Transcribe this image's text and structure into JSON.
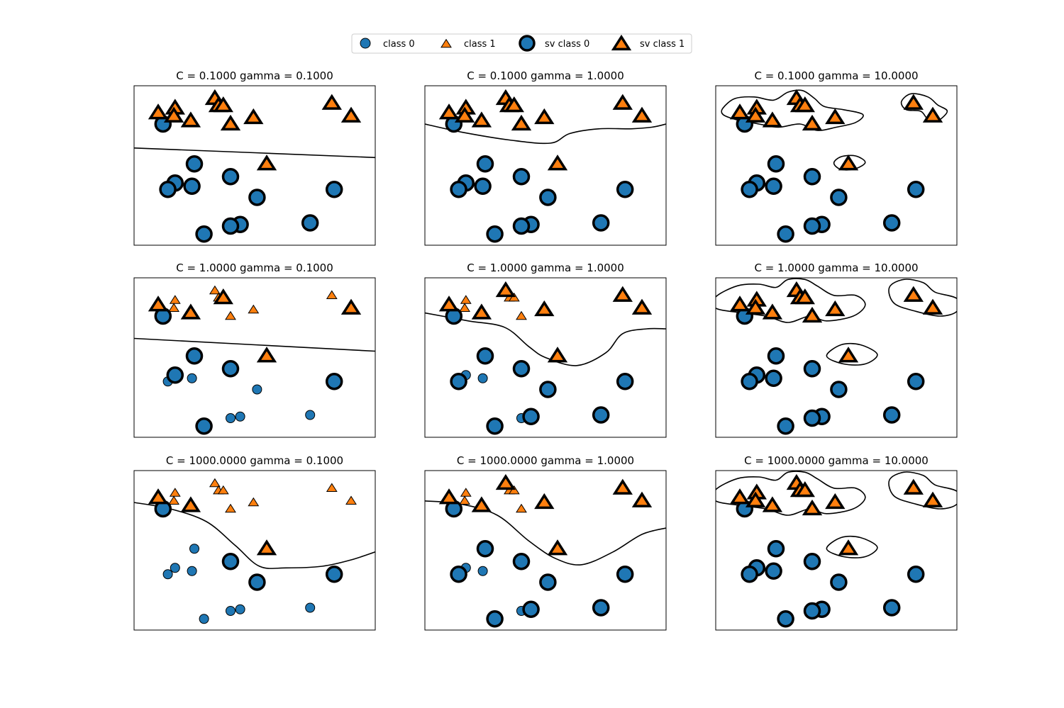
{
  "chart_data": {
    "type": "scatter",
    "figure_layout": "3x3 grid of subplots",
    "colors": {
      "class0": "#1f77b4",
      "class1": "#ff7f0e",
      "edge": "#000000",
      "boundary": "#000000"
    },
    "legend": {
      "placement": "top-center",
      "entries": [
        {
          "label": "class 0",
          "marker": "circle",
          "size": "small"
        },
        {
          "label": "class 1",
          "marker": "triangle",
          "size": "small"
        },
        {
          "label": "sv class 0",
          "marker": "circle",
          "size": "large"
        },
        {
          "label": "sv class 1",
          "marker": "triangle",
          "size": "large"
        }
      ]
    },
    "xlim": [
      0,
      10
    ],
    "ylim": [
      0,
      10
    ],
    "points": [
      {
        "x": 1.2,
        "y": 7.6,
        "cls": 0
      },
      {
        "x": 2.5,
        "y": 5.1,
        "cls": 0
      },
      {
        "x": 1.7,
        "y": 3.9,
        "cls": 0
      },
      {
        "x": 2.4,
        "y": 3.7,
        "cls": 0
      },
      {
        "x": 1.4,
        "y": 3.5,
        "cls": 0
      },
      {
        "x": 4.0,
        "y": 4.3,
        "cls": 0
      },
      {
        "x": 5.1,
        "y": 3.0,
        "cls": 0
      },
      {
        "x": 8.3,
        "y": 3.5,
        "cls": 0
      },
      {
        "x": 4.4,
        "y": 1.3,
        "cls": 0
      },
      {
        "x": 4.0,
        "y": 1.2,
        "cls": 0
      },
      {
        "x": 7.3,
        "y": 1.4,
        "cls": 0
      },
      {
        "x": 2.9,
        "y": 0.7,
        "cls": 0
      },
      {
        "x": 1.0,
        "y": 8.3,
        "cls": 1
      },
      {
        "x": 1.7,
        "y": 8.6,
        "cls": 1
      },
      {
        "x": 1.65,
        "y": 8.1,
        "cls": 1
      },
      {
        "x": 3.35,
        "y": 9.2,
        "cls": 1
      },
      {
        "x": 3.5,
        "y": 8.75,
        "cls": 1
      },
      {
        "x": 3.7,
        "y": 8.75,
        "cls": 1
      },
      {
        "x": 2.35,
        "y": 7.8,
        "cls": 1
      },
      {
        "x": 4.0,
        "y": 7.6,
        "cls": 1
      },
      {
        "x": 4.95,
        "y": 8.0,
        "cls": 1
      },
      {
        "x": 8.2,
        "y": 8.9,
        "cls": 1
      },
      {
        "x": 9.0,
        "y": 8.1,
        "cls": 1
      },
      {
        "x": 5.5,
        "y": 5.1,
        "cls": 1
      }
    ],
    "panels": [
      {
        "title": "C = 0.1000 gamma = 0.1000",
        "C": 0.1,
        "gamma": 0.1,
        "support_vectors": "all",
        "boundary": "nearly flat line"
      },
      {
        "title": "C = 0.1000 gamma = 1.0000",
        "C": 0.1,
        "gamma": 1.0,
        "support_vectors": "all",
        "boundary": "smooth curve"
      },
      {
        "title": "C = 0.1000 gamma = 10.0000",
        "C": 0.1,
        "gamma": 10.0,
        "support_vectors": "all",
        "boundary": "islands around class 1"
      },
      {
        "title": "C = 1.0000 gamma = 0.1000",
        "C": 1.0,
        "gamma": 0.1,
        "support_vectors": [
          0,
          1,
          2,
          5,
          7,
          11,
          12,
          17,
          18,
          22,
          23
        ],
        "boundary": "nearly flat line"
      },
      {
        "title": "C = 1.0000 gamma = 1.0000",
        "C": 1.0,
        "gamma": 1.0,
        "support_vectors": [
          0,
          1,
          4,
          5,
          6,
          7,
          8,
          10,
          11,
          12,
          15,
          18,
          20,
          21,
          22,
          23
        ],
        "boundary": "wavy curve"
      },
      {
        "title": "C = 1.0000 gamma = 10.0000",
        "C": 1.0,
        "gamma": 10.0,
        "support_vectors": "all",
        "boundary": "islands around class 1"
      },
      {
        "title": "C = 1000.0000 gamma = 0.1000",
        "C": 1000.0,
        "gamma": 0.1,
        "support_vectors": [
          0,
          5,
          6,
          7,
          12,
          18,
          23
        ],
        "boundary": "wavy curve"
      },
      {
        "title": "C = 1000.0000 gamma = 1.0000",
        "C": 1000.0,
        "gamma": 1.0,
        "support_vectors": [
          0,
          1,
          4,
          5,
          6,
          7,
          8,
          10,
          11,
          12,
          15,
          18,
          20,
          21,
          22,
          23
        ],
        "boundary": "wavy curve"
      },
      {
        "title": "C = 1000.0000 gamma = 10.0000",
        "C": 1000.0,
        "gamma": 10.0,
        "support_vectors": "all",
        "boundary": "islands around class 1"
      }
    ]
  }
}
